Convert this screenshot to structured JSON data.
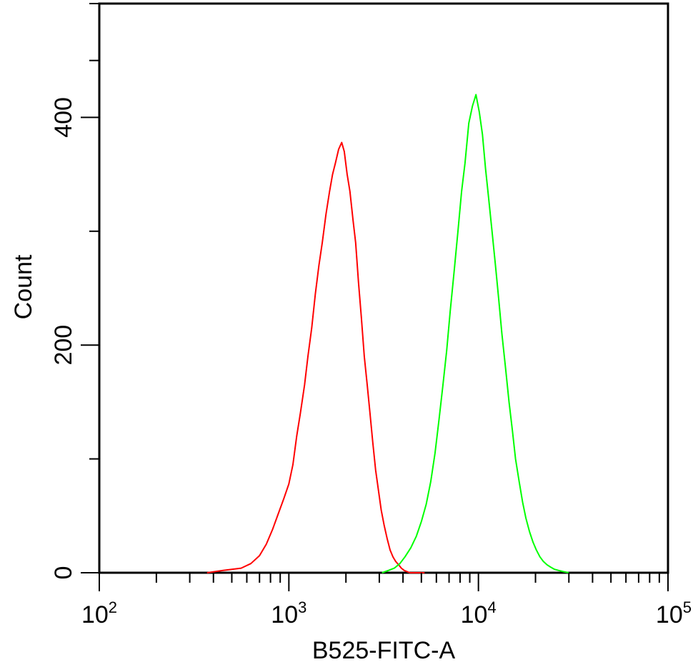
{
  "chart_data": {
    "type": "line",
    "title": "",
    "xlabel": "B525-FITC-A",
    "ylabel": "Count",
    "x_scale": "log",
    "xlim": [
      100,
      100000
    ],
    "ylim": [
      0,
      500
    ],
    "grid": false,
    "legend": "none",
    "x_ticks": [
      {
        "value": 100,
        "base": "10",
        "exp": "2"
      },
      {
        "value": 1000,
        "base": "10",
        "exp": "3"
      },
      {
        "value": 10000,
        "base": "10",
        "exp": "4"
      },
      {
        "value": 100000,
        "base": "10",
        "exp": "5"
      }
    ],
    "y_ticks": [
      {
        "value": 0,
        "label": "0"
      },
      {
        "value": 200,
        "label": "200"
      },
      {
        "value": 400,
        "label": "400"
      }
    ],
    "y_minor_ticks": [
      100,
      300,
      450,
      500
    ],
    "series": [
      {
        "color": "#ff0000",
        "x": [
          370,
          450,
          560,
          630,
          700,
          760,
          820,
          880,
          940,
          1000,
          1050,
          1100,
          1150,
          1210,
          1260,
          1320,
          1380,
          1440,
          1500,
          1570,
          1640,
          1700,
          1760,
          1830,
          1900,
          1960,
          2030,
          2100,
          2180,
          2250,
          2330,
          2410,
          2500,
          2590,
          2680,
          2770,
          2870,
          2970,
          3070,
          3180,
          3300,
          3420,
          3540,
          3660,
          3790,
          3920,
          4060,
          4200,
          4350,
          4500,
          4800,
          5200
        ],
        "y": [
          0,
          2,
          4,
          8,
          15,
          25,
          38,
          52,
          65,
          78,
          95,
          120,
          140,
          165,
          190,
          215,
          245,
          270,
          290,
          315,
          335,
          350,
          360,
          372,
          378,
          370,
          350,
          335,
          310,
          290,
          255,
          225,
          190,
          165,
          140,
          115,
          90,
          72,
          55,
          42,
          30,
          20,
          14,
          10,
          7,
          4,
          2,
          1,
          0,
          0,
          0,
          0
        ]
      },
      {
        "color": "#00ff00",
        "x": [
          3100,
          3350,
          3600,
          3850,
          4100,
          4400,
          4700,
          5000,
          5300,
          5600,
          5900,
          6200,
          6500,
          6800,
          7100,
          7450,
          7800,
          8150,
          8500,
          8900,
          9300,
          9700,
          10100,
          10500,
          10900,
          11300,
          11800,
          12300,
          12800,
          13300,
          13900,
          14500,
          15100,
          15700,
          16400,
          17100,
          17800,
          18600,
          19400,
          20200,
          21100,
          22000,
          23000,
          24000,
          25200,
          26500,
          28000,
          30000
        ],
        "y": [
          0,
          2,
          4,
          8,
          14,
          22,
          32,
          45,
          60,
          80,
          105,
          135,
          165,
          195,
          230,
          265,
          300,
          335,
          360,
          395,
          410,
          420,
          405,
          385,
          355,
          330,
          300,
          270,
          240,
          210,
          180,
          150,
          125,
          100,
          80,
          62,
          48,
          36,
          27,
          20,
          14,
          10,
          7,
          5,
          3,
          2,
          1,
          0
        ]
      }
    ]
  }
}
